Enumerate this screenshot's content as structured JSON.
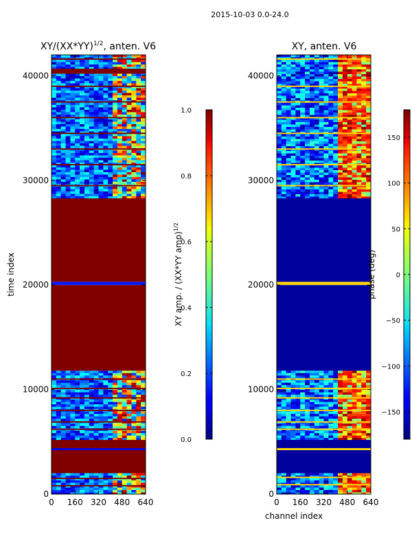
{
  "figure": {
    "suptitle": "2015-10-03 0.0-24.0"
  },
  "chart_data": [
    {
      "type": "heatmap",
      "title": "XY/(XX*YY)",
      "title_superscript": "1/2",
      "title_suffix": ", anten. V6",
      "xlabel": "",
      "ylabel": "time index",
      "xlim": [
        0,
        640
      ],
      "ylim": [
        0,
        42000
      ],
      "x_ticks": [
        0,
        160,
        320,
        480,
        640
      ],
      "y_ticks": [
        0,
        10000,
        20000,
        30000,
        40000
      ],
      "colormap": "jet",
      "colorbar": {
        "label": "XY amp. / (XX*YY amp)",
        "label_superscript": "1/2",
        "range": [
          0.0,
          1.0
        ],
        "ticks": [
          "0.0",
          "0.2",
          "0.4",
          "0.6",
          "0.8",
          "1.0"
        ],
        "tick_values": [
          0.0,
          0.2,
          0.4,
          0.6,
          0.8,
          1.0
        ]
      },
      "regions": [
        {
          "t0": 0,
          "t1": 2000,
          "pattern": "mixed"
        },
        {
          "t0": 2000,
          "t1": 4200,
          "value": 1.0
        },
        {
          "t0": 4200,
          "t1": 4400,
          "value": 0.1
        },
        {
          "t0": 4400,
          "t1": 5200,
          "value": 1.0
        },
        {
          "t0": 5200,
          "t1": 11800,
          "pattern": "mixed"
        },
        {
          "t0": 11800,
          "t1": 20000,
          "value": 1.0
        },
        {
          "t0": 20000,
          "t1": 20300,
          "value": 0.15
        },
        {
          "t0": 20300,
          "t1": 28300,
          "value": 1.0
        },
        {
          "t0": 28300,
          "t1": 40200,
          "pattern": "mixed"
        },
        {
          "t0": 40200,
          "t1": 40700,
          "value": 1.0
        },
        {
          "t0": 40700,
          "t1": 42000,
          "pattern": "mixed"
        }
      ],
      "hlines": [
        {
          "t": 800,
          "value": 1.0
        },
        {
          "t": 1500,
          "value": 1.0
        },
        {
          "t": 6200,
          "value": 1.0
        },
        {
          "t": 6900,
          "value": 1.0
        },
        {
          "t": 8000,
          "value": 1.0
        },
        {
          "t": 9200,
          "value": 1.0
        },
        {
          "t": 10100,
          "value": 1.0
        },
        {
          "t": 11000,
          "value": 1.0
        },
        {
          "t": 29500,
          "value": 1.0
        },
        {
          "t": 31500,
          "value": 1.0
        },
        {
          "t": 33000,
          "value": 1.0
        },
        {
          "t": 34500,
          "value": 1.0
        },
        {
          "t": 36000,
          "value": 1.0
        },
        {
          "t": 37500,
          "value": 1.0
        },
        {
          "t": 39000,
          "value": 1.0
        },
        {
          "t": 41600,
          "value": 1.0
        }
      ]
    },
    {
      "type": "heatmap",
      "title": "XY, anten. V6",
      "xlabel": "channel index",
      "ylabel": "",
      "xlim": [
        0,
        640
      ],
      "ylim": [
        0,
        42000
      ],
      "x_ticks": [
        0,
        160,
        320,
        480,
        640
      ],
      "y_ticks": [
        0,
        10000,
        20000,
        30000,
        40000
      ],
      "colormap": "jet",
      "colorbar": {
        "label": "phase (deg)",
        "range": [
          -180,
          180
        ],
        "ticks": [
          "150",
          "100",
          "50",
          "0",
          "−50",
          "−100",
          "−150"
        ],
        "tick_values": [
          150,
          100,
          50,
          0,
          -50,
          -100,
          -150
        ]
      },
      "regions": [
        {
          "t0": 0,
          "t1": 2000,
          "pattern": "mixed"
        },
        {
          "t0": 2000,
          "t1": 4200,
          "value": -170
        },
        {
          "t0": 4200,
          "t1": 4400,
          "value": 60
        },
        {
          "t0": 4400,
          "t1": 5200,
          "value": -170
        },
        {
          "t0": 5200,
          "t1": 11800,
          "pattern": "mixed"
        },
        {
          "t0": 11800,
          "t1": 20000,
          "value": -170
        },
        {
          "t0": 20000,
          "t1": 20300,
          "value": 60
        },
        {
          "t0": 20300,
          "t1": 28300,
          "value": -170
        },
        {
          "t0": 28300,
          "t1": 42000,
          "pattern": "mixed"
        }
      ],
      "hlines": [
        {
          "t": 900,
          "value": 60
        },
        {
          "t": 1600,
          "value": 60
        },
        {
          "t": 6200,
          "value": 60
        },
        {
          "t": 6900,
          "value": 60
        },
        {
          "t": 8000,
          "value": 60
        },
        {
          "t": 9200,
          "value": 60
        },
        {
          "t": 10100,
          "value": 60
        },
        {
          "t": 11000,
          "value": 60
        },
        {
          "t": 29500,
          "value": 60
        },
        {
          "t": 31500,
          "value": 60
        },
        {
          "t": 33000,
          "value": 60
        },
        {
          "t": 34500,
          "value": 60
        },
        {
          "t": 36000,
          "value": 60
        },
        {
          "t": 37500,
          "value": 60
        },
        {
          "t": 39000,
          "value": 60
        },
        {
          "t": 41600,
          "value": 60
        }
      ]
    }
  ]
}
